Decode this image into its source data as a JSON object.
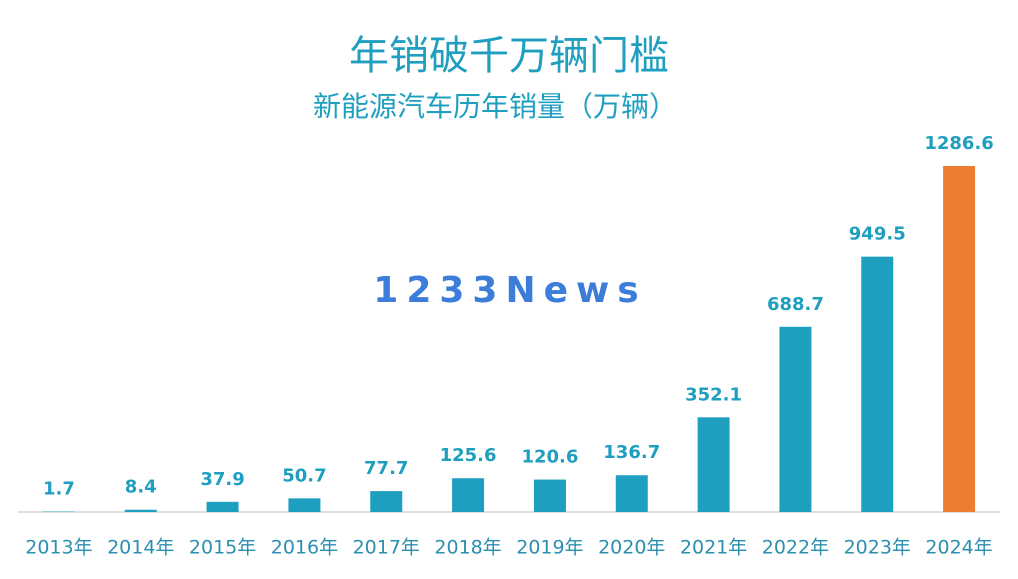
{
  "chart_data": {
    "type": "bar",
    "title": "年销破千万辆门槛",
    "subtitle": "新能源汽车历年销量（万辆）",
    "watermark": "1233News",
    "categories": [
      "2013年",
      "2014年",
      "2015年",
      "2016年",
      "2017年",
      "2018年",
      "2019年",
      "2020年",
      "2021年",
      "2022年",
      "2023年",
      "2024年"
    ],
    "values": [
      1.7,
      8.4,
      37.9,
      50.7,
      77.7,
      125.6,
      120.6,
      136.7,
      352.1,
      688.7,
      949.5,
      1286.6
    ],
    "colors": [
      "#1f9fbf",
      "#1f9fbf",
      "#1f9fbf",
      "#1f9fbf",
      "#1f9fbf",
      "#1f9fbf",
      "#1f9fbf",
      "#1f9fbf",
      "#1f9fbf",
      "#1f9fbf",
      "#1f9fbf",
      "#ed7d31"
    ]
  }
}
